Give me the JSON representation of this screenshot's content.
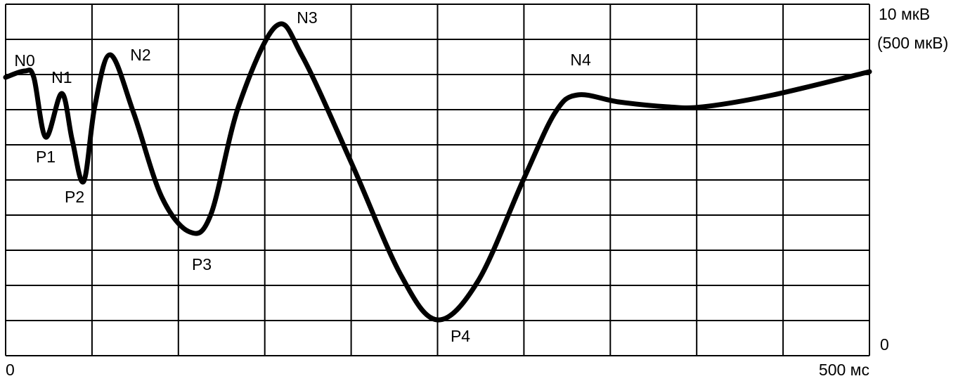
{
  "chart_data": {
    "type": "line",
    "x": [
      0,
      11,
      16.3,
      23.2,
      32.5,
      38.6,
      45.2,
      51.7,
      60.6,
      74,
      90.3,
      106.6,
      118.8,
      135,
      156.6,
      171.7,
      200.2,
      228.5,
      249.8,
      273.4,
      299.8,
      318.1,
      331.2,
      354.8,
      383.3,
      403.6,
      444.3,
      500
    ],
    "series": [
      {
        "color": "#000000",
        "values": [
          7.92,
          8.1,
          7.92,
          6.22,
          7.46,
          6.12,
          4.96,
          7.12,
          8.56,
          6.92,
          4.52,
          3.52,
          4.02,
          7.12,
          9.38,
          8.52,
          5.48,
          2.32,
          1.02,
          2.12,
          5.02,
          6.92,
          7.42,
          7.22,
          7.08,
          7.08,
          7.42,
          8.08
        ]
      }
    ],
    "peaks": [
      {
        "label": "N0",
        "x": 11,
        "y": 8.1
      },
      {
        "label": "P1",
        "x": 23.2,
        "y": 6.22
      },
      {
        "label": "N1",
        "x": 32.5,
        "y": 7.46
      },
      {
        "label": "P2",
        "x": 45.2,
        "y": 4.96
      },
      {
        "label": "N2",
        "x": 60.6,
        "y": 8.56
      },
      {
        "label": "P3",
        "x": 106.6,
        "y": 3.52
      },
      {
        "label": "N3",
        "x": 156.6,
        "y": 9.38
      },
      {
        "label": "P4",
        "x": 249.8,
        "y": 1.02
      },
      {
        "label": "N4",
        "x": 331.2,
        "y": 7.42
      }
    ],
    "xlim": [
      0,
      500
    ],
    "ylim": [
      0,
      10
    ],
    "xticks": [
      0,
      {
        "value": 500,
        "label": "500 мс"
      }
    ],
    "yticks": [
      0,
      {
        "value": 10,
        "label": "10 мкВ"
      }
    ],
    "y_alt_label": "(500 мкВ)",
    "grid_x": [
      0,
      50,
      100,
      150,
      200,
      250,
      300,
      350,
      400,
      450,
      500
    ],
    "grid_y": [
      0,
      1,
      2,
      3,
      4,
      5,
      6,
      7,
      8,
      9,
      10
    ]
  }
}
